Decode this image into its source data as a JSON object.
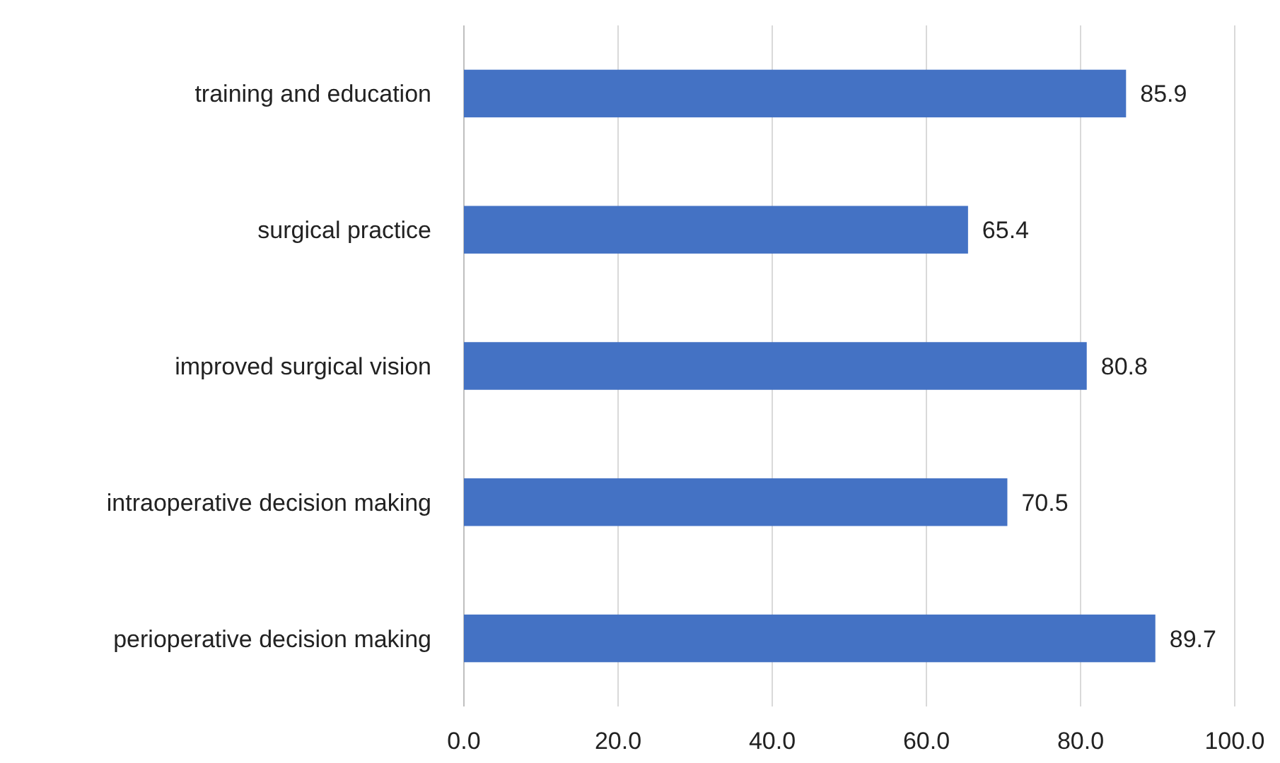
{
  "chart_data": {
    "type": "bar",
    "orientation": "horizontal",
    "categories": [
      "training and education",
      "surgical practice",
      "improved surgical vision",
      "intraoperative decision making",
      "perioperative decision making"
    ],
    "values": [
      85.9,
      65.4,
      80.8,
      70.5,
      89.7
    ],
    "color": "#4472c4",
    "xlim": [
      0,
      100
    ],
    "xticks": [
      {
        "value": 0,
        "label": "0.0"
      },
      {
        "value": 20,
        "label": "20.0"
      },
      {
        "value": 40,
        "label": "40.0"
      },
      {
        "value": 60,
        "label": "60.0"
      },
      {
        "value": 80,
        "label": "80.0"
      },
      {
        "value": 100,
        "label": "100.0"
      }
    ],
    "grid": "x",
    "data_labels": true
  }
}
